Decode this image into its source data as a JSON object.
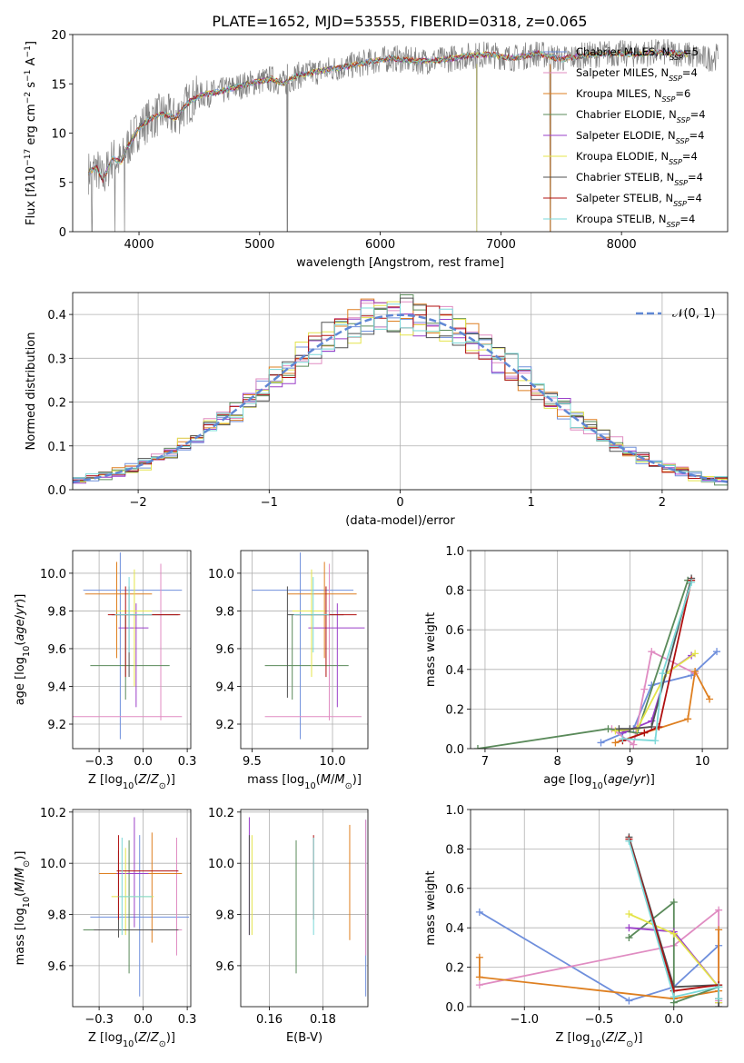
{
  "figure_title": "PLATE=1652, MJD=53555, FIBERID=0318, z=0.065",
  "series": [
    {
      "name": "Chabrier MILES, N<sub>SSP</sub>=5",
      "imf": "Chabrier",
      "lib": "MILES",
      "nssp": 5,
      "color": "#6f8fdc"
    },
    {
      "name": "Salpeter MILES, N<sub>SSP</sub>=4",
      "imf": "Salpeter",
      "lib": "MILES",
      "nssp": 4,
      "color": "#e08cc2"
    },
    {
      "name": "Kroupa MILES, N<sub>SSP</sub>=6",
      "imf": "Kroupa",
      "lib": "MILES",
      "nssp": 6,
      "color": "#de7f20"
    },
    {
      "name": "Chabrier ELODIE, N<sub>SSP</sub>=4",
      "imf": "Chabrier",
      "lib": "ELODIE",
      "nssp": 4,
      "color": "#5a8a5a"
    },
    {
      "name": "Salpeter ELODIE, N<sub>SSP</sub>=4",
      "imf": "Salpeter",
      "lib": "ELODIE",
      "nssp": 4,
      "color": "#9a3fc8"
    },
    {
      "name": "Kroupa ELODIE, N<sub>SSP</sub>=4",
      "imf": "Kroupa",
      "lib": "ELODIE",
      "nssp": 4,
      "color": "#e4e44a"
    },
    {
      "name": "Chabrier STELIB, N<sub>SSP</sub>=4",
      "imf": "Chabrier",
      "lib": "STELIB",
      "nssp": 4,
      "color": "#505050"
    },
    {
      "name": "Salpeter STELIB, N<sub>SSP</sub>=4",
      "imf": "Salpeter",
      "lib": "STELIB",
      "nssp": 4,
      "color": "#b01010"
    },
    {
      "name": "Kroupa STELIB, N<sub>SSP</sub>=4",
      "imf": "Kroupa",
      "lib": "STELIB",
      "nssp": 4,
      "color": "#7ad8d8"
    }
  ],
  "chart_data": [
    {
      "id": "spectrum",
      "type": "line",
      "xlabel": "wavelength [Angstrom, rest frame]",
      "ylabel": "Flux [f<tspan font-style='italic'>λ</tspan>10<tspan baseline-shift='super' font-size='70%'>−17</tspan> erg cm<tspan baseline-shift='super' font-size='70%'>−2</tspan> s<tspan baseline-shift='super' font-size='70%'>−1</tspan> A<tspan baseline-shift='super' font-size='70%'>−1</tspan>]",
      "xlim": [
        3450,
        8880
      ],
      "ylim": [
        0,
        20
      ],
      "xticks": [
        4000,
        5000,
        6000,
        7000,
        8000
      ],
      "yticks": [
        0,
        5,
        10,
        15,
        20
      ],
      "data_color": "#808080",
      "continuum": [
        [
          3580,
          6
        ],
        [
          3650,
          6.5
        ],
        [
          3700,
          5.2
        ],
        [
          3780,
          7.5
        ],
        [
          3850,
          7
        ],
        [
          3900,
          8.5
        ],
        [
          4000,
          10.5
        ],
        [
          4100,
          11.5
        ],
        [
          4200,
          12
        ],
        [
          4300,
          11.5
        ],
        [
          4400,
          13
        ],
        [
          4500,
          13.8
        ],
        [
          4700,
          14.3
        ],
        [
          4900,
          15
        ],
        [
          5100,
          15.5
        ],
        [
          5200,
          15
        ],
        [
          5300,
          15.8
        ],
        [
          5500,
          16.3
        ],
        [
          5700,
          16.7
        ],
        [
          5900,
          17.2
        ],
        [
          6100,
          17.6
        ],
        [
          6300,
          17.3
        ],
        [
          6500,
          17.4
        ],
        [
          6700,
          17.8
        ],
        [
          6900,
          18
        ],
        [
          7100,
          17.6
        ],
        [
          7300,
          18.1
        ],
        [
          7500,
          17.5
        ],
        [
          7700,
          17.9
        ],
        [
          7900,
          18.1
        ],
        [
          8100,
          18
        ],
        [
          8300,
          18.2
        ],
        [
          8500,
          18.1
        ],
        [
          8700,
          17.5
        ],
        [
          8800,
          17.8
        ]
      ],
      "noise_amplitude": 1.4,
      "dropouts": [
        [
          3610,
          0
        ],
        [
          3800,
          0
        ],
        [
          3880,
          0
        ],
        [
          5230,
          0
        ],
        [
          6800,
          0
        ],
        [
          7410,
          0
        ]
      ],
      "model_range": [
        3580,
        8550
      ]
    },
    {
      "id": "residual-hist",
      "type": "area",
      "xlabel": "(data-model)/error",
      "ylabel": "Normed distribution",
      "xlim": [
        -2.5,
        2.5
      ],
      "ylim": [
        0,
        0.45
      ],
      "xticks": [
        -2,
        -1,
        0,
        1,
        2
      ],
      "yticks": [
        0.0,
        0.1,
        0.2,
        0.3,
        0.4
      ],
      "legend": "𝒩(0, 1)",
      "gauss_color": "#5f87d4",
      "bin_width": 0.1
    },
    {
      "id": "z-age",
      "type": "scatter",
      "xlabel": "Z [log<tspan baseline-shift='sub' font-size='75%'>10</tspan>(<tspan font-style='italic'>Z</tspan>/<tspan font-style='italic'>Z</tspan><tspan baseline-shift='sub' font-size='75%'>⊙</tspan>)]",
      "ylabel": "age  [log<tspan baseline-shift='sub' font-size='75%'>10</tspan>(<tspan font-style='italic'>age</tspan>/<tspan font-style='italic'>yr</tspan>)]",
      "xlim": [
        -0.4,
        0.27
      ],
      "ylim": [
        9.07,
        10.12
      ],
      "xticks": [
        -0.25,
        0.0,
        0.25
      ],
      "yticks": [
        9.2,
        9.4,
        9.6,
        9.8,
        10.0
      ],
      "points": [
        {
          "x": -0.13,
          "y": 9.91,
          "xe": [
            -0.34,
            0.22
          ],
          "ye": [
            9.12,
            10.11
          ]
        },
        {
          "x": 0.1,
          "y": 9.24,
          "xe": [
            -0.4,
            0.22
          ],
          "ye": [
            9.22,
            10.05
          ]
        },
        {
          "x": -0.15,
          "y": 9.89,
          "xe": [
            -0.33,
            0.05
          ],
          "ye": [
            9.55,
            10.06
          ]
        },
        {
          "x": -0.1,
          "y": 9.51,
          "xe": [
            -0.3,
            0.15
          ],
          "ye": [
            9.33,
            9.78
          ]
        },
        {
          "x": -0.04,
          "y": 9.71,
          "xe": [
            -0.14,
            0.03
          ],
          "ye": [
            9.29,
            9.84
          ]
        },
        {
          "x": -0.05,
          "y": 9.8,
          "xe": [
            -0.15,
            0.05
          ],
          "ye": [
            9.4,
            10.02
          ]
        },
        {
          "x": -0.08,
          "y": 9.78,
          "xe": [
            -0.18,
            0.2
          ],
          "ye": [
            9.45,
            9.93
          ]
        },
        {
          "x": -0.1,
          "y": 9.78,
          "xe": [
            -0.2,
            0.21
          ],
          "ye": [
            9.45,
            9.93
          ]
        },
        {
          "x": -0.08,
          "y": 9.78,
          "xe": [
            -0.16,
            0.05
          ],
          "ye": [
            9.58,
            9.98
          ]
        }
      ]
    },
    {
      "id": "mass-age",
      "type": "scatter",
      "xlabel": "mass [log<tspan baseline-shift='sub' font-size='75%'>10</tspan>(<tspan font-style='italic'>M</tspan>/<tspan font-style='italic'>M</tspan><tspan baseline-shift='sub' font-size='75%'>⊙</tspan>)]",
      "xlim": [
        9.43,
        10.22
      ],
      "ylim": [
        9.07,
        10.12
      ],
      "xticks": [
        9.5,
        10.0
      ],
      "yticks": [
        9.2,
        9.4,
        9.6,
        9.8,
        10.0
      ],
      "points": [
        {
          "x": 9.8,
          "y": 9.91,
          "xe": [
            9.5,
            10.13
          ],
          "ye": [
            9.12,
            10.11
          ]
        },
        {
          "x": 9.98,
          "y": 9.24,
          "xe": [
            9.58,
            10.18
          ],
          "ye": [
            9.22,
            10.05
          ]
        },
        {
          "x": 9.95,
          "y": 9.89,
          "xe": [
            9.72,
            10.15
          ],
          "ye": [
            9.55,
            10.06
          ]
        },
        {
          "x": 9.75,
          "y": 9.51,
          "xe": [
            9.58,
            10.1
          ],
          "ye": [
            9.33,
            9.78
          ]
        },
        {
          "x": 10.03,
          "y": 9.71,
          "xe": [
            9.85,
            10.2
          ],
          "ye": [
            9.29,
            9.84
          ]
        },
        {
          "x": 9.87,
          "y": 9.8,
          "xe": [
            9.75,
            9.95
          ],
          "ye": [
            9.45,
            10.02
          ]
        },
        {
          "x": 9.72,
          "y": 9.78,
          "xe": [
            9.72,
            10.07
          ],
          "ye": [
            9.34,
            9.93
          ]
        },
        {
          "x": 9.96,
          "y": 9.78,
          "xe": [
            9.77,
            10.15
          ],
          "ye": [
            9.45,
            9.93
          ]
        },
        {
          "x": 9.88,
          "y": 9.78,
          "xe": [
            9.76,
            9.98
          ],
          "ye": [
            9.58,
            9.98
          ]
        }
      ]
    },
    {
      "id": "age-weight",
      "type": "line",
      "xlabel": "age  [log<tspan baseline-shift='sub' font-size='75%'>10</tspan>(<tspan font-style='italic'>age</tspan>/<tspan font-style='italic'>yr</tspan>)]",
      "ylabel": "mass weight",
      "xlim": [
        6.8,
        10.35
      ],
      "ylim": [
        0,
        1.0
      ],
      "xticks": [
        7,
        8,
        9,
        10
      ],
      "yticks": [
        0.0,
        0.2,
        0.4,
        0.6,
        0.8,
        1.0
      ],
      "lines": [
        [
          [
            8.6,
            0.03
          ],
          [
            9.05,
            0.1
          ],
          [
            9.3,
            0.32
          ],
          [
            9.85,
            0.37
          ],
          [
            10.2,
            0.49
          ]
        ],
        [
          [
            8.75,
            0.1
          ],
          [
            9.05,
            0.02
          ],
          [
            9.2,
            0.3
          ],
          [
            9.3,
            0.49
          ],
          [
            9.9,
            0.38
          ]
        ],
        [
          [
            8.8,
            0.03
          ],
          [
            9.2,
            0.08
          ],
          [
            9.8,
            0.15
          ],
          [
            9.9,
            0.39
          ],
          [
            10.1,
            0.25
          ]
        ],
        [
          [
            6.9,
            0.0
          ],
          [
            8.7,
            0.1
          ],
          [
            9.1,
            0.08
          ],
          [
            9.8,
            0.85
          ]
        ],
        [
          [
            8.9,
            0.08
          ],
          [
            9.3,
            0.14
          ],
          [
            9.5,
            0.38
          ],
          [
            9.85,
            0.47
          ]
        ],
        [
          [
            8.8,
            0.09
          ],
          [
            9.1,
            0.1
          ],
          [
            9.5,
            0.38
          ],
          [
            9.9,
            0.48
          ]
        ],
        [
          [
            8.85,
            0.1
          ],
          [
            9.0,
            0.1
          ],
          [
            9.3,
            0.11
          ],
          [
            9.85,
            0.86
          ]
        ],
        [
          [
            8.9,
            0.04
          ],
          [
            9.2,
            0.08
          ],
          [
            9.4,
            0.11
          ],
          [
            9.85,
            0.85
          ]
        ],
        [
          [
            8.9,
            0.05
          ],
          [
            9.35,
            0.04
          ],
          [
            9.45,
            0.38
          ],
          [
            9.85,
            0.84
          ]
        ]
      ]
    },
    {
      "id": "z-mass",
      "type": "scatter",
      "xlabel": "Z [log<tspan baseline-shift='sub' font-size='75%'>10</tspan>(<tspan font-style='italic'>Z</tspan>/<tspan font-style='italic'>Z</tspan><tspan baseline-shift='sub' font-size='75%'>⊙</tspan>)]",
      "ylabel": "mass [log<tspan baseline-shift='sub' font-size='75%'>10</tspan>(<tspan font-style='italic'>M</tspan>/<tspan font-style='italic'>M</tspan><tspan baseline-shift='sub' font-size='75%'>⊙</tspan>)]",
      "xlim": [
        -0.4,
        0.27
      ],
      "ylim": [
        9.44,
        10.21
      ],
      "xticks": [
        -0.25,
        0.0,
        0.25
      ],
      "yticks": [
        9.6,
        9.8,
        10.0,
        10.2
      ],
      "points": [
        {
          "x": -0.02,
          "y": 9.79,
          "xe": [
            -0.3,
            0.26
          ],
          "ye": [
            9.48,
            10.11
          ]
        },
        {
          "x": 0.19,
          "y": 9.74,
          "xe": [
            -0.1,
            0.22
          ],
          "ye": [
            9.64,
            10.1
          ]
        },
        {
          "x": 0.05,
          "y": 9.96,
          "xe": [
            -0.25,
            0.22
          ],
          "ye": [
            9.69,
            10.12
          ]
        },
        {
          "x": -0.08,
          "y": 9.74,
          "xe": [
            -0.34,
            0.03
          ],
          "ye": [
            9.57,
            10.09
          ]
        },
        {
          "x": -0.05,
          "y": 9.96,
          "xe": [
            -0.15,
            0.03
          ],
          "ye": [
            9.75,
            10.18
          ]
        },
        {
          "x": -0.1,
          "y": 9.87,
          "xe": [
            -0.18,
            0.06
          ],
          "ye": [
            9.72,
            10.06
          ]
        },
        {
          "x": -0.14,
          "y": 9.74,
          "xe": [
            -0.28,
            0.2
          ],
          "ye": [
            9.71,
            10.05
          ]
        },
        {
          "x": -0.14,
          "y": 9.97,
          "xe": [
            -0.15,
            0.2
          ],
          "ye": [
            9.78,
            10.11
          ]
        },
        {
          "x": -0.12,
          "y": 9.87,
          "xe": [
            -0.14,
            0.05
          ],
          "ye": [
            9.72,
            10.1
          ]
        }
      ]
    },
    {
      "id": "ebv-mass",
      "type": "scatter",
      "xlabel": "E(B-V)",
      "xlim": [
        0.1493,
        0.1968
      ],
      "ylim": [
        9.44,
        10.21
      ],
      "xticks": [
        0.16,
        0.18
      ],
      "yticks": [
        9.6,
        9.8,
        10.0,
        10.2
      ],
      "points": [
        {
          "x": 0.196,
          "y": 9.48,
          "ye": [
            9.48,
            10.17
          ]
        },
        {
          "x": 0.196,
          "y": 9.74,
          "ye": [
            9.64,
            10.17
          ]
        },
        {
          "x": 0.19,
          "y": 9.74,
          "ye": [
            9.7,
            10.15
          ]
        },
        {
          "x": 0.17,
          "y": 9.74,
          "ye": [
            9.57,
            10.09
          ]
        },
        {
          "x": 0.1525,
          "y": 9.96,
          "ye": [
            9.72,
            10.18
          ]
        },
        {
          "x": 0.1535,
          "y": 9.87,
          "ye": [
            9.72,
            10.11
          ]
        },
        {
          "x": 0.1525,
          "y": 9.74,
          "ye": [
            9.72,
            10.11
          ]
        },
        {
          "x": 0.1765,
          "y": 9.97,
          "ye": [
            9.78,
            10.11
          ]
        },
        {
          "x": 0.1765,
          "y": 9.87,
          "ye": [
            9.72,
            10.1
          ]
        }
      ]
    },
    {
      "id": "z-weight",
      "type": "line",
      "xlabel": "Z [log<tspan baseline-shift='sub' font-size='75%'>10</tspan>(<tspan font-style='italic'>Z</tspan>/<tspan font-style='italic'>Z</tspan><tspan baseline-shift='sub' font-size='75%'>⊙</tspan>)]",
      "ylabel": "mass weight",
      "xlim": [
        -1.36,
        0.36
      ],
      "ylim": [
        0,
        1.0
      ],
      "xticks": [
        -1.0,
        -0.5,
        0.0
      ],
      "yticks": [
        0.0,
        0.2,
        0.4,
        0.6,
        0.8,
        1.0
      ],
      "lines": [
        [
          [
            -1.3,
            0.48
          ],
          [
            -0.3,
            0.03
          ],
          [
            0.0,
            0.1
          ],
          [
            0.3,
            0.31
          ]
        ],
        [
          [
            -1.3,
            0.11
          ],
          [
            0.0,
            0.31
          ],
          [
            0.3,
            0.49
          ],
          [
            0.3,
            0.03
          ]
        ],
        [
          [
            -1.3,
            0.25
          ],
          [
            -1.3,
            0.15
          ],
          [
            0.0,
            0.04
          ],
          [
            0.3,
            0.08
          ],
          [
            0.3,
            0.39
          ]
        ],
        [
          [
            -0.3,
            0.35
          ],
          [
            0.0,
            0.53
          ],
          [
            0.0,
            0.02
          ],
          [
            0.3,
            0.1
          ]
        ],
        [
          [
            -0.3,
            0.4
          ],
          [
            0.0,
            0.38
          ],
          [
            0.3,
            0.1
          ],
          [
            0.3,
            0.02
          ]
        ],
        [
          [
            -0.3,
            0.47
          ],
          [
            0.0,
            0.37
          ],
          [
            0.3,
            0.1
          ],
          [
            0.3,
            0.02
          ]
        ],
        [
          [
            -0.3,
            0.86
          ],
          [
            0.0,
            0.1
          ],
          [
            0.3,
            0.11
          ],
          [
            0.3,
            0.0
          ]
        ],
        [
          [
            -0.3,
            0.85
          ],
          [
            0.0,
            0.08
          ],
          [
            0.3,
            0.11
          ],
          [
            0.3,
            0.04
          ]
        ],
        [
          [
            -0.3,
            0.84
          ],
          [
            0.0,
            0.05
          ],
          [
            0.3,
            0.1
          ],
          [
            0.3,
            0.04
          ]
        ]
      ]
    }
  ]
}
